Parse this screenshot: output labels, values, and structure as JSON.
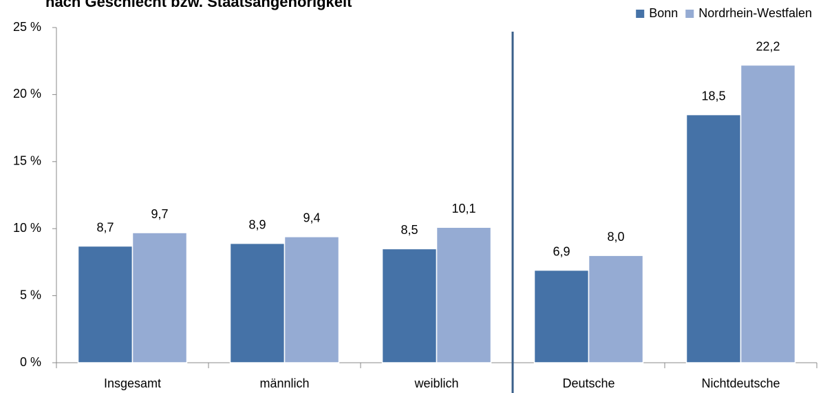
{
  "chart_data": {
    "type": "bar",
    "title": "nach Geschlecht bzw. Staatsangehörigkeit",
    "categories": [
      "Insgesamt",
      "männlich",
      "weiblich",
      "Deutsche",
      "Nichtdeutsche"
    ],
    "series": [
      {
        "name": "Bonn",
        "color": "#4572a7",
        "values": [
          8.7,
          8.9,
          8.5,
          6.9,
          18.5
        ],
        "value_labels": [
          "8,7",
          "8,9",
          "8,5",
          "6,9",
          "18,5"
        ]
      },
      {
        "name": "Nordrhein-Westfalen",
        "color": "#95abd3",
        "values": [
          9.7,
          9.4,
          10.1,
          8.0,
          22.2
        ],
        "value_labels": [
          "9,7",
          "9,4",
          "10,1",
          "8,0",
          "22,2"
        ]
      }
    ],
    "ylim": [
      0,
      25
    ],
    "yticks": [
      {
        "value": 0,
        "label": "0 %"
      },
      {
        "value": 5,
        "label": "5 %"
      },
      {
        "value": 10,
        "label": "10 %"
      },
      {
        "value": 15,
        "label": "15 %"
      },
      {
        "value": 20,
        "label": "20 %"
      },
      {
        "value": 25,
        "label": "25 %"
      }
    ],
    "legend": "top-right"
  }
}
